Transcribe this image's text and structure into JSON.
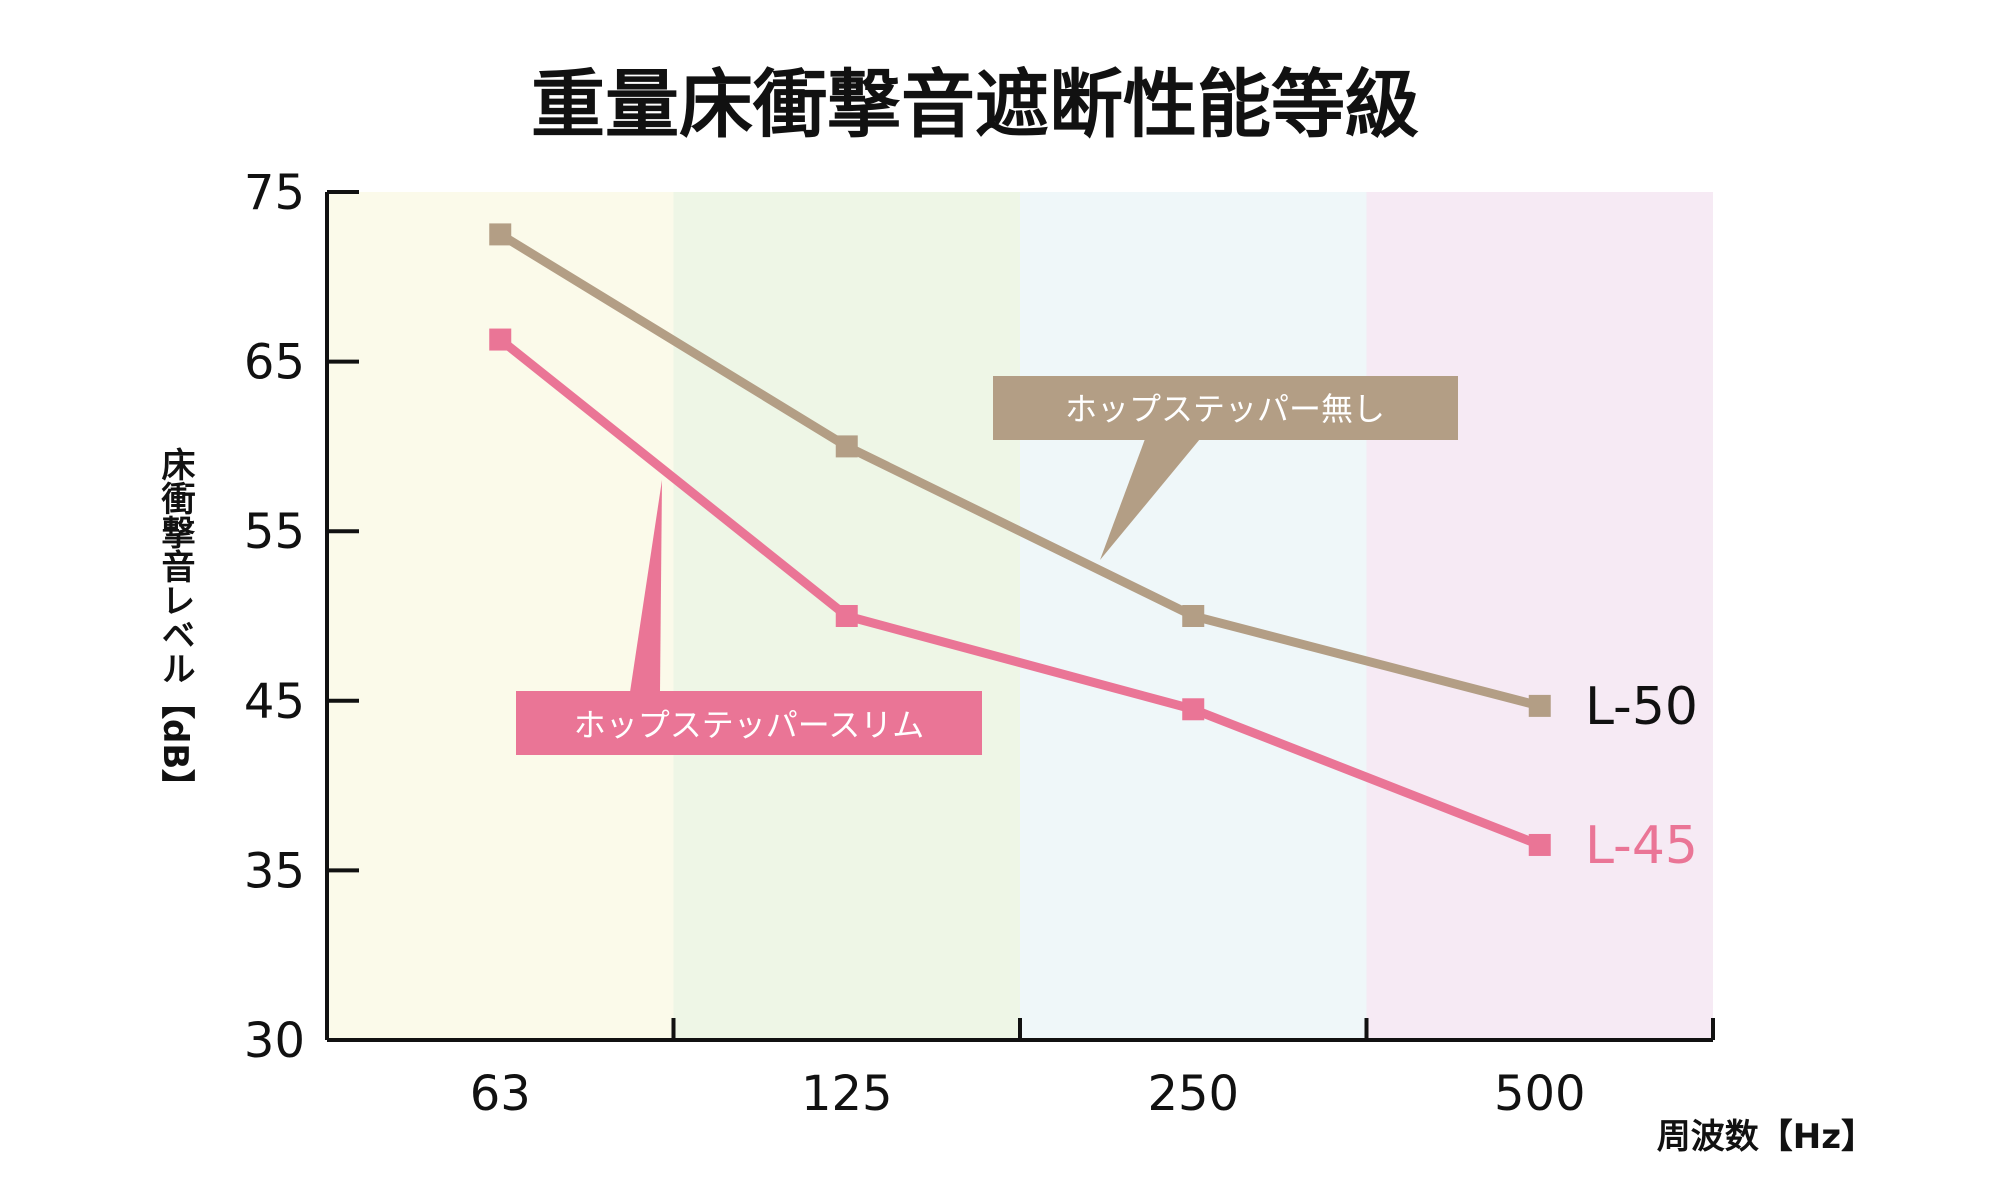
{
  "chart_data": {
    "type": "line",
    "title": "重量床衝撃音遮断性能等級",
    "xlabel": "周波数【Hz】",
    "ylabel": "床衝撃音レベル【dB】",
    "categories": [
      "63",
      "125",
      "250",
      "500"
    ],
    "y_ticks": [
      30,
      35,
      45,
      55,
      65,
      75
    ],
    "ylim": [
      30,
      75
    ],
    "band_colors": [
      "#fbfaea",
      "#eef6e6",
      "#eff7f9",
      "#f6eaf4"
    ],
    "series": [
      {
        "id": "without",
        "callout": "ホップステッパー無し",
        "end_label": "L-50",
        "values": [
          72.5,
          60,
          50,
          44.7
        ],
        "color": "#b39e85",
        "end_label_color": "#111111"
      },
      {
        "id": "slim",
        "callout": "ホップステッパースリム",
        "end_label": "L-45",
        "values": [
          66.3,
          50,
          44.5,
          36.5
        ],
        "color": "#ea7596",
        "end_label_color": "#ea7596"
      }
    ]
  }
}
